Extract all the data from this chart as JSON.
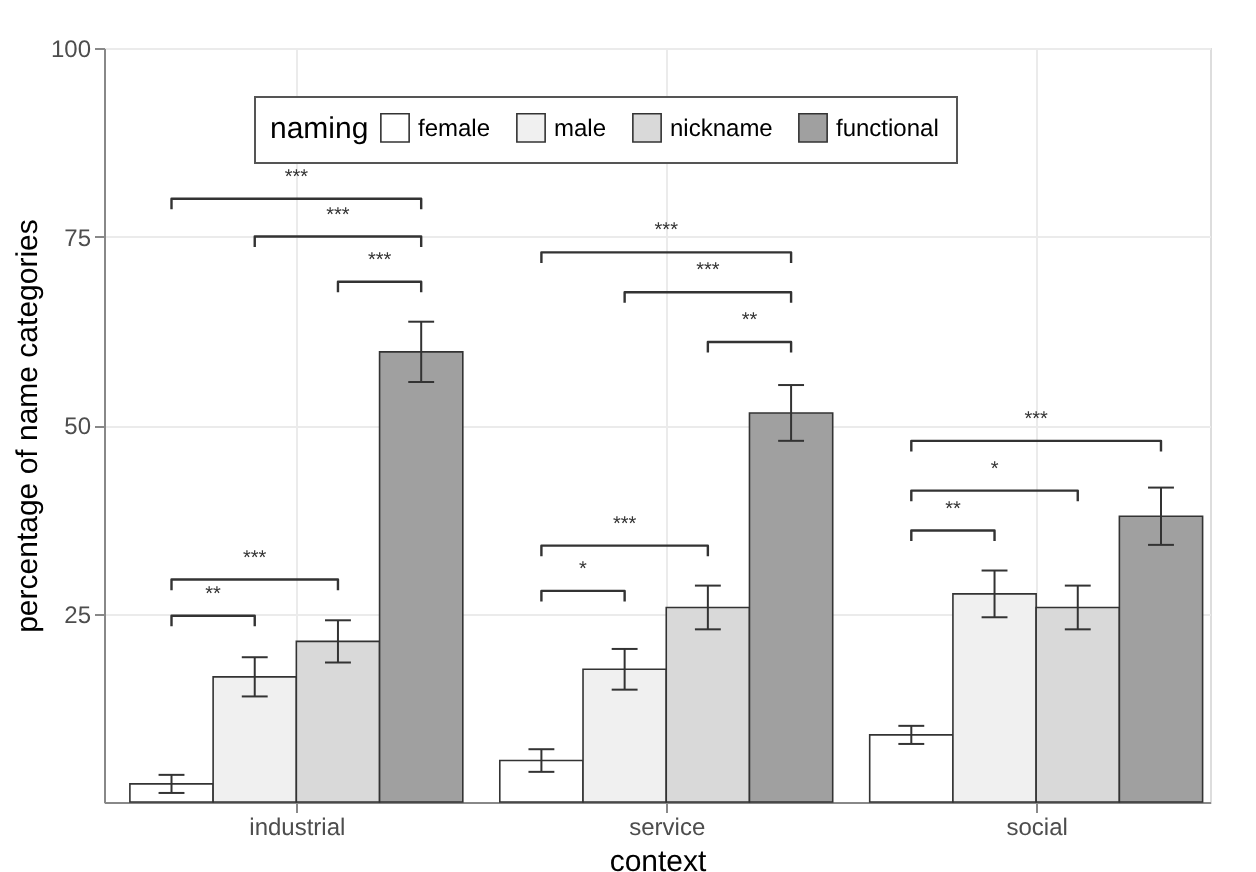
{
  "chart_data": {
    "type": "bar",
    "xlabel": "context",
    "ylabel": "percentage of name categories",
    "legend_title": "naming",
    "categories": [
      "industrial",
      "service",
      "social"
    ],
    "series": [
      {
        "name": "female",
        "color": "#ffffff",
        "values": [
          2.4,
          5.5,
          8.9
        ],
        "errors": [
          1.2,
          1.5,
          1.2
        ]
      },
      {
        "name": "male",
        "color": "#f0f0f0",
        "values": [
          16.6,
          17.6,
          27.6
        ],
        "errors": [
          2.6,
          2.7,
          3.1
        ]
      },
      {
        "name": "nickname",
        "color": "#d9d9d9",
        "values": [
          21.3,
          25.8,
          25.8
        ],
        "errors": [
          2.8,
          2.9,
          2.9
        ]
      },
      {
        "name": "functional",
        "color": "#a0a0a0",
        "values": [
          59.7,
          51.6,
          37.9
        ],
        "errors": [
          4.0,
          3.7,
          3.8
        ]
      }
    ],
    "ylim": [
      0,
      100
    ],
    "yticks": [
      25,
      50,
      75,
      100
    ],
    "grid": true,
    "legend": "top",
    "annotations": [
      "***",
      "***",
      "***",
      "***",
      "**",
      "***",
      "***",
      "**",
      "***",
      "*",
      "***",
      "*",
      "**"
    ]
  }
}
